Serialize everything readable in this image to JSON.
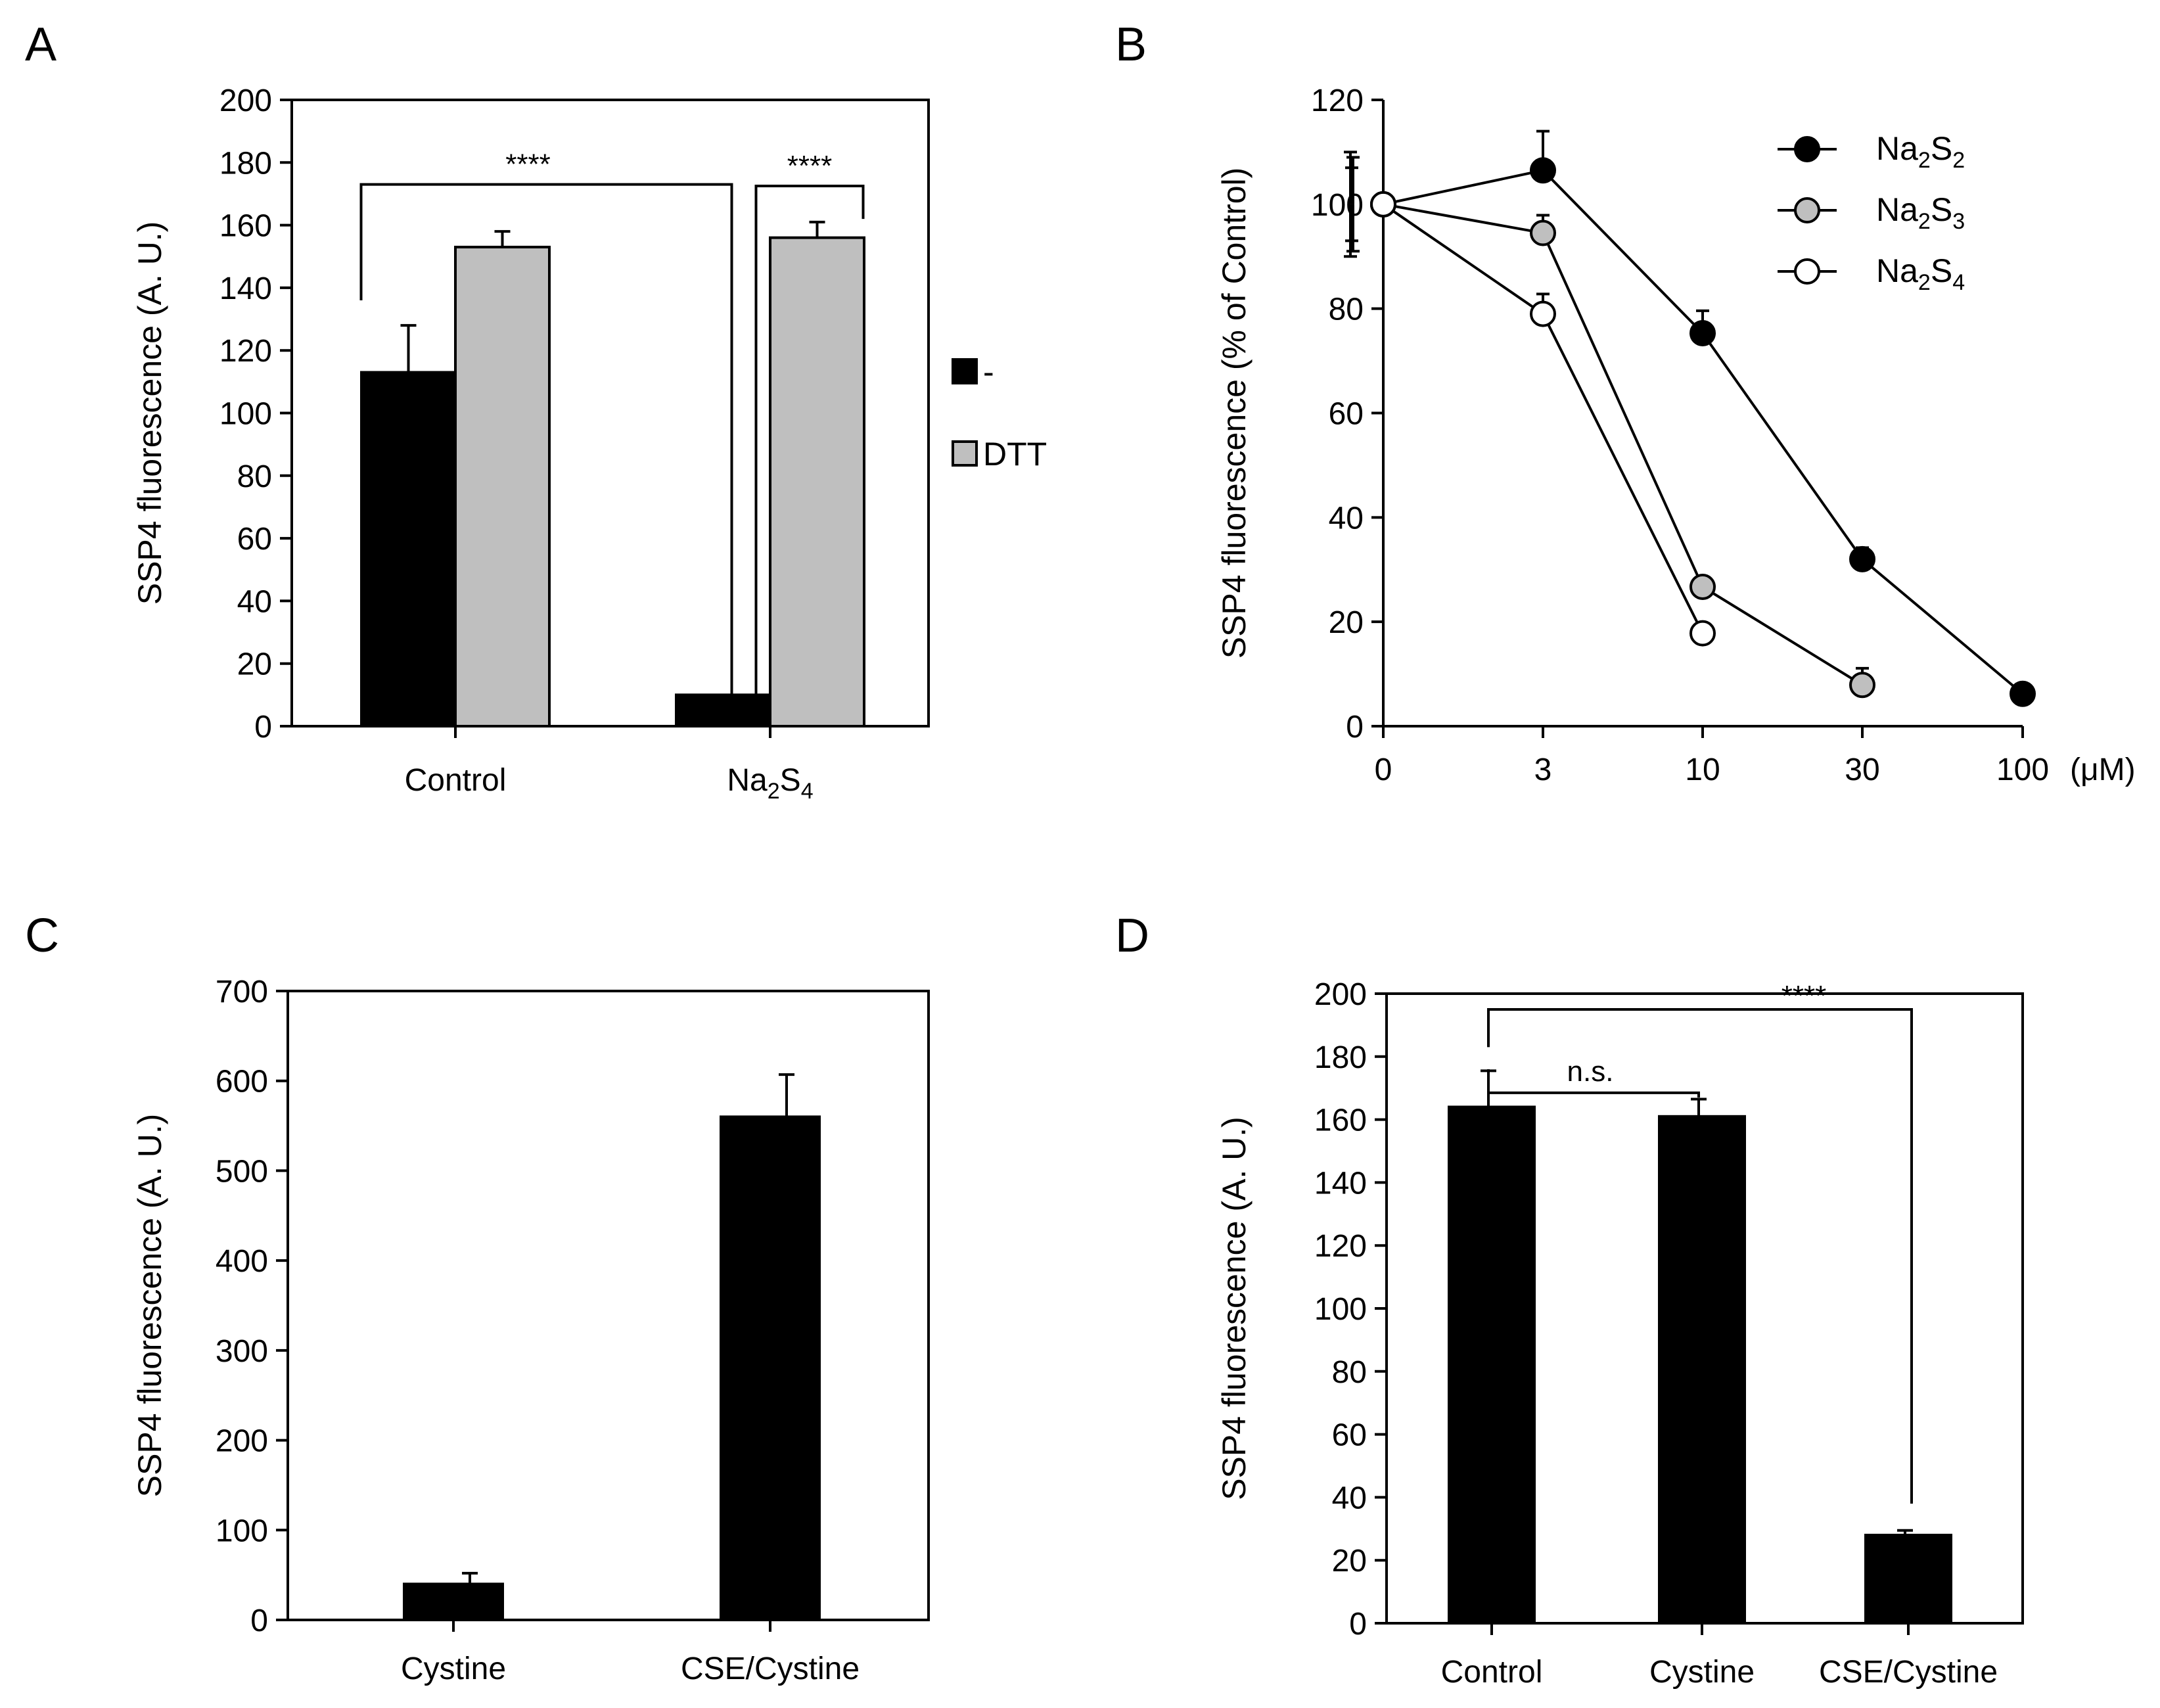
{
  "figure": {
    "panels": [
      "A",
      "B",
      "C",
      "D"
    ]
  },
  "chart_data": [
    {
      "panel": "A",
      "type": "bar",
      "title": "",
      "xlabel": "",
      "ylabel": "SSP4 fluorescence (A. U.)",
      "ylim": [
        0,
        200
      ],
      "yticks": [
        0,
        20,
        40,
        60,
        80,
        100,
        120,
        140,
        160,
        180,
        200
      ],
      "grid": false,
      "categories": [
        {
          "base": "Control",
          "segments": [
            {
              "t": "Control",
              "sub": false
            }
          ]
        },
        {
          "base": "Na2S4",
          "segments": [
            {
              "t": "Na",
              "sub": false
            },
            {
              "t": "2",
              "sub": true
            },
            {
              "t": "S",
              "sub": false
            },
            {
              "t": "4",
              "sub": true
            }
          ]
        }
      ],
      "series": [
        {
          "name": "-",
          "color": "#000000",
          "values": [
            113,
            10
          ],
          "errors": [
            15,
            0
          ]
        },
        {
          "name": "DTT",
          "color": "#bfbfbf",
          "values": [
            153,
            156
          ],
          "errors": [
            5,
            5
          ]
        }
      ],
      "legend_position": "right",
      "annotations": [
        {
          "label": "****",
          "from_series": 0,
          "from_cat": 0,
          "to_series": 0,
          "to_cat": 1
        },
        {
          "label": "****",
          "from_series": 0,
          "from_cat": 1,
          "to_series": 1,
          "to_cat": 1
        }
      ]
    },
    {
      "panel": "B",
      "type": "line",
      "title": "",
      "xlabel": "(μM)",
      "ylabel": "SSP4 fluorescence (% of Control)",
      "x_categories": [
        "0",
        "3",
        "10",
        "30",
        "100"
      ],
      "ylim": [
        0,
        120
      ],
      "yticks": [
        0,
        20,
        40,
        60,
        80,
        100,
        120
      ],
      "grid": false,
      "series": [
        {
          "name": "Na2S2",
          "segments": [
            {
              "t": "Na",
              "sub": false
            },
            {
              "t": "2",
              "sub": true
            },
            {
              "t": "S",
              "sub": false
            },
            {
              "t": "2",
              "sub": true
            }
          ],
          "fill": "#000000",
          "values": [
            100,
            106.5,
            75.3,
            32,
            6.2
          ],
          "errors": [
            10,
            7.5,
            4.3,
            2.2,
            0
          ]
        },
        {
          "name": "Na2S3",
          "segments": [
            {
              "t": "Na",
              "sub": false
            },
            {
              "t": "2",
              "sub": true
            },
            {
              "t": "S",
              "sub": false
            },
            {
              "t": "3",
              "sub": true
            }
          ],
          "fill": "#bfbfbf",
          "values": [
            100,
            94.5,
            26.7,
            7.9,
            null
          ],
          "errors": [
            7,
            3.4,
            0,
            3.2,
            0
          ]
        },
        {
          "name": "Na2S4",
          "segments": [
            {
              "t": "Na",
              "sub": false
            },
            {
              "t": "2",
              "sub": true
            },
            {
              "t": "S",
              "sub": false
            },
            {
              "t": "4",
              "sub": true
            }
          ],
          "fill": "#ffffff",
          "values": [
            100,
            79,
            17.8,
            null,
            null
          ],
          "errors": [
            9,
            3.8,
            0,
            0,
            0
          ]
        }
      ],
      "legend_position": "top-right"
    },
    {
      "panel": "C",
      "type": "bar",
      "title": "",
      "xlabel": "",
      "ylabel": "SSP4 fluorescence (A. U.)",
      "ylim": [
        0,
        700
      ],
      "yticks": [
        0,
        100,
        200,
        300,
        400,
        500,
        600,
        700
      ],
      "grid": false,
      "categories": [
        {
          "base": "Cystine",
          "segments": [
            {
              "t": "Cystine",
              "sub": false
            }
          ]
        },
        {
          "base": "CSE/Cystine",
          "segments": [
            {
              "t": "CSE/Cystine",
              "sub": false
            }
          ]
        }
      ],
      "series": [
        {
          "name": "",
          "color": "#000000",
          "values": [
            40,
            560
          ],
          "errors": [
            12,
            47
          ]
        }
      ]
    },
    {
      "panel": "D",
      "type": "bar",
      "title": "",
      "xlabel": "",
      "ylabel": "SSP4 fluorescence (A. U.)",
      "ylim": [
        0,
        200
      ],
      "yticks": [
        0,
        20,
        40,
        60,
        80,
        100,
        120,
        140,
        160,
        180,
        200
      ],
      "grid": false,
      "categories": [
        {
          "base": "Control",
          "segments": [
            {
              "t": "Control",
              "sub": false
            }
          ]
        },
        {
          "base": "Cystine",
          "segments": [
            {
              "t": "Cystine",
              "sub": false
            }
          ]
        },
        {
          "base": "CSE/Cystine",
          "segments": [
            {
              "t": "CSE/Cystine",
              "sub": false
            }
          ]
        }
      ],
      "series": [
        {
          "name": "",
          "color": "#000000",
          "values": [
            164,
            161,
            28
          ],
          "errors": [
            11.5,
            5.5,
            1.5
          ]
        }
      ],
      "annotations": [
        {
          "label": "n.s.",
          "from_cat": 0,
          "to_cat": 1
        },
        {
          "label": "****",
          "from_cat": 0,
          "to_cat": 2
        }
      ]
    }
  ]
}
